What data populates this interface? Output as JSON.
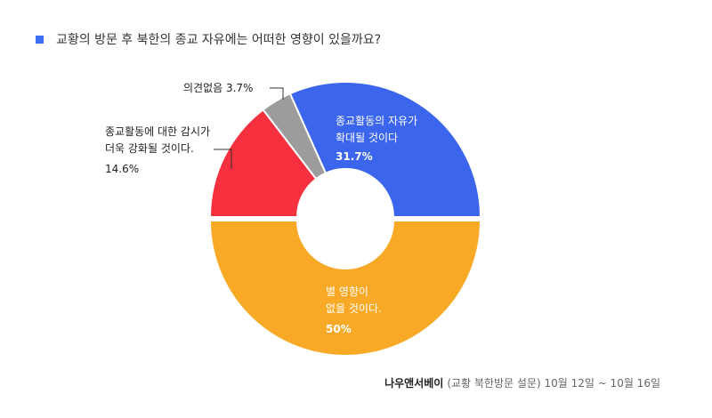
{
  "colors": {
    "marker": "#3b6ff0",
    "slices": [
      "#3a65ec",
      "#f8aa27",
      "#f7303f",
      "#9c9c9c"
    ]
  },
  "chart_data": {
    "type": "pie",
    "title": "교황의 방문 후 북한의 종교 자유에는 어떠한 영향이 있을까요?",
    "categories": [
      "종교활동의 자유가 확대될 것이다",
      "별 영향이 없을 것이다.",
      "종교활동에 대한 감시가 더욱 강화될 것이다.",
      "의견없음"
    ],
    "values": [
      31.7,
      50,
      14.6,
      3.7
    ],
    "labels": [
      {
        "lines": [
          "종교활동의 자유가",
          "확대될 것이다"
        ],
        "value": "31.7%"
      },
      {
        "lines": [
          "별 영향이",
          "없을 것이다."
        ],
        "value": "50%"
      },
      {
        "lines": [
          "종교활동에 대한 감시가",
          "더욱 강화될 것이다."
        ],
        "value": "14.6%"
      },
      {
        "lines": [
          "의견없음 3.7%"
        ],
        "value": ""
      }
    ]
  },
  "source": {
    "brand": "나우앤서베이",
    "detail": "(교황 북한방문 설문) 10월 12일 ~ 10월 16일"
  }
}
